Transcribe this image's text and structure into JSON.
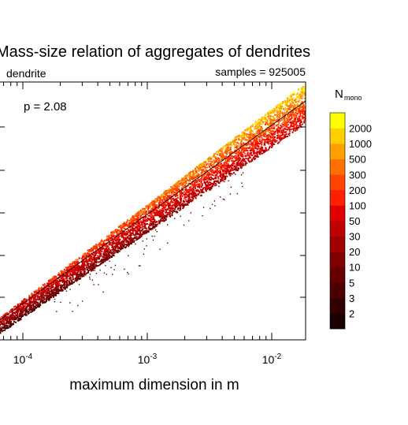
{
  "chart_data": {
    "type": "heatmap",
    "title": "Mass-size relation of aggregates of dendrites",
    "subtitle_left": "dendrite",
    "subtitle_right": "samples = 925005",
    "annotation": "p = 2.08",
    "xlabel": "maximum dimension in m",
    "x_scale": "log",
    "xlim": [
      7e-05,
      0.02
    ],
    "x_ticks": [
      {
        "value": 0.0001,
        "base": "10",
        "exp": "-4"
      },
      {
        "value": 0.001,
        "base": "10",
        "exp": "-3"
      },
      {
        "value": 0.01,
        "base": "10",
        "exp": "-2"
      }
    ],
    "ylabel": "",
    "fit_line": {
      "exponent": 2.08
    },
    "colorbar": {
      "title_main": "N",
      "title_sub": "mono",
      "levels": [
        "2",
        "3",
        "5",
        "10",
        "20",
        "30",
        "50",
        "100",
        "200",
        "300",
        "500",
        "1000",
        "2000"
      ],
      "colors": [
        "#1a0000",
        "#330000",
        "#4d0000",
        "#660000",
        "#800000",
        "#a00000",
        "#c00000",
        "#e00000",
        "#ff2000",
        "#ff4500",
        "#ff7000",
        "#ffa000",
        "#ffd000",
        "#ffff00"
      ]
    },
    "legend_placement": "right"
  }
}
